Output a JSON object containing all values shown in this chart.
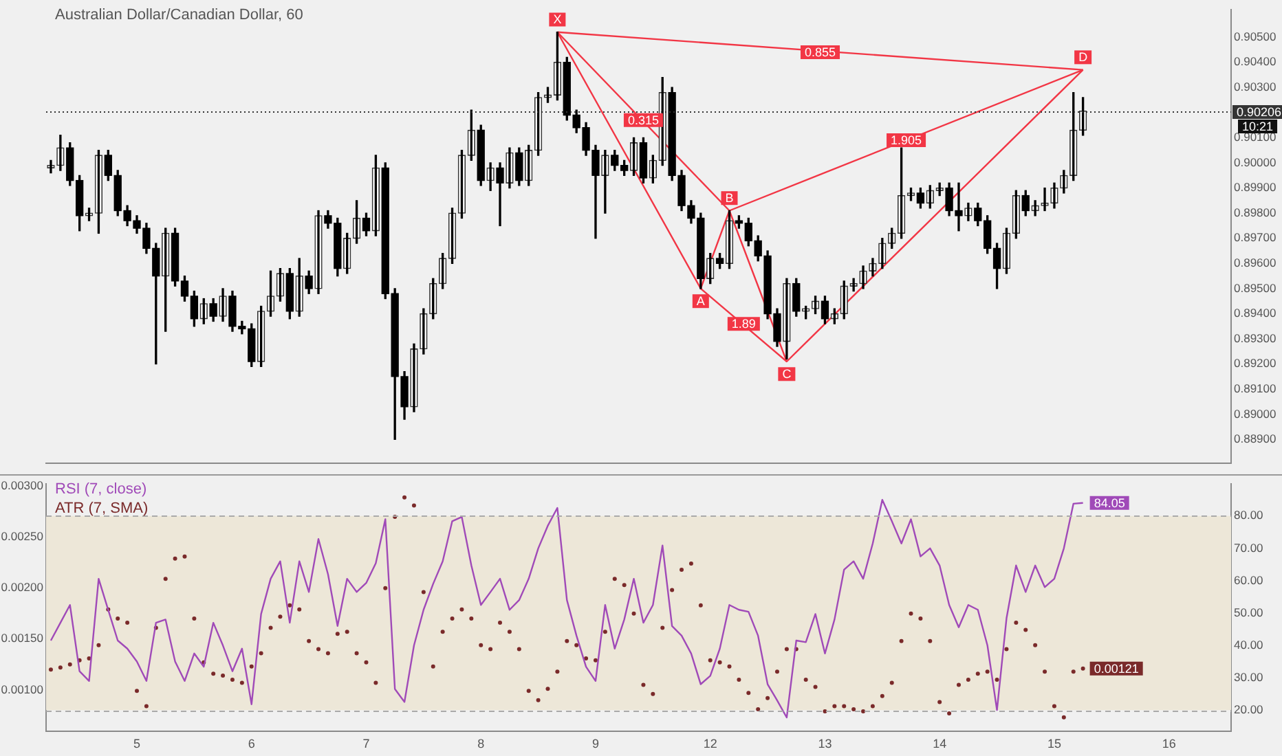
{
  "chart_data": [
    {
      "type": "candlestick",
      "title": "Australian Dollar/Canadian Dollar, 60",
      "categories": [
        null,
        null,
        null,
        null,
        null,
        null,
        null,
        null,
        null,
        "5",
        null,
        null,
        null,
        null,
        null,
        null,
        null,
        null,
        null,
        null,
        null,
        "6",
        null,
        null,
        null,
        null,
        null,
        null,
        null,
        null,
        null,
        null,
        null,
        "7",
        null,
        null,
        null,
        null,
        null,
        null,
        null,
        null,
        null,
        null,
        null,
        "8",
        null,
        null,
        null,
        null,
        null,
        null,
        null,
        null,
        null,
        null,
        null,
        "9",
        null,
        null,
        null,
        null,
        null,
        null,
        null,
        null,
        null,
        null,
        null,
        "12",
        null,
        null,
        null,
        null,
        null,
        null,
        null,
        null,
        null,
        null,
        null,
        "13",
        null,
        null,
        null,
        null,
        null,
        null,
        null,
        null,
        null,
        null,
        null,
        "14",
        null,
        null,
        null,
        null,
        null,
        null,
        null,
        null,
        null,
        null,
        null,
        "15",
        null,
        null,
        null,
        null,
        null,
        null,
        null,
        null,
        null,
        null,
        null,
        "16",
        null,
        null,
        null,
        null,
        null,
        null
      ],
      "ohlc": [
        [
          0.8998,
          0.9001,
          0.8996,
          0.8999
        ],
        [
          0.8999,
          0.9011,
          0.8997,
          0.9006
        ],
        [
          0.9006,
          0.9008,
          0.8991,
          0.8993
        ],
        [
          0.8993,
          0.8995,
          0.8973,
          0.8979
        ],
        [
          0.8979,
          0.8982,
          0.8977,
          0.898
        ],
        [
          0.898,
          0.9005,
          0.8972,
          0.9003
        ],
        [
          0.9003,
          0.9005,
          0.8993,
          0.8995
        ],
        [
          0.8995,
          0.8997,
          0.8979,
          0.8981
        ],
        [
          0.8981,
          0.8983,
          0.8975,
          0.8977
        ],
        [
          0.8977,
          0.8979,
          0.8972,
          0.8974
        ],
        [
          0.8974,
          0.8976,
          0.8964,
          0.8966
        ],
        [
          0.8966,
          0.8968,
          0.892,
          0.8955
        ],
        [
          0.8955,
          0.8974,
          0.8933,
          0.8972
        ],
        [
          0.8972,
          0.8974,
          0.8951,
          0.8953
        ],
        [
          0.8953,
          0.8955,
          0.8945,
          0.8947
        ],
        [
          0.8947,
          0.8949,
          0.8935,
          0.8938
        ],
        [
          0.8938,
          0.8946,
          0.8936,
          0.8944
        ],
        [
          0.8944,
          0.8946,
          0.8937,
          0.8939
        ],
        [
          0.8939,
          0.895,
          0.8937,
          0.8947
        ],
        [
          0.8947,
          0.8949,
          0.8933,
          0.8935
        ],
        [
          0.8935,
          0.8937,
          0.8932,
          0.8934
        ],
        [
          0.8934,
          0.8936,
          0.8919,
          0.8921
        ],
        [
          0.8921,
          0.8943,
          0.8919,
          0.8941
        ],
        [
          0.8941,
          0.8957,
          0.8939,
          0.8947
        ],
        [
          0.8947,
          0.8958,
          0.8945,
          0.8956
        ],
        [
          0.8956,
          0.8958,
          0.8938,
          0.8941
        ],
        [
          0.8941,
          0.8962,
          0.8939,
          0.8955
        ],
        [
          0.8955,
          0.8957,
          0.8948,
          0.895
        ],
        [
          0.895,
          0.8981,
          0.8948,
          0.8979
        ],
        [
          0.8979,
          0.8981,
          0.8974,
          0.8976
        ],
        [
          0.8976,
          0.8978,
          0.8955,
          0.8958
        ],
        [
          0.8958,
          0.8972,
          0.8956,
          0.897
        ],
        [
          0.897,
          0.8985,
          0.8968,
          0.8978
        ],
        [
          0.8978,
          0.898,
          0.8971,
          0.8973
        ],
        [
          0.8973,
          0.9003,
          0.8971,
          0.8998
        ],
        [
          0.8998,
          0.9,
          0.8946,
          0.8948
        ],
        [
          0.8948,
          0.895,
          0.889,
          0.8915
        ],
        [
          0.8915,
          0.8917,
          0.8898,
          0.8903
        ],
        [
          0.8903,
          0.8928,
          0.8901,
          0.8926
        ],
        [
          0.8926,
          0.8942,
          0.8924,
          0.894
        ],
        [
          0.894,
          0.8954,
          0.8938,
          0.8952
        ],
        [
          0.8952,
          0.8964,
          0.895,
          0.8962
        ],
        [
          0.8962,
          0.8982,
          0.896,
          0.898
        ],
        [
          0.898,
          0.9005,
          0.8978,
          0.9003
        ],
        [
          0.9003,
          0.9021,
          0.9001,
          0.9013
        ],
        [
          0.9013,
          0.9015,
          0.8991,
          0.8993
        ],
        [
          0.8993,
          0.9,
          0.8989,
          0.8998
        ],
        [
          0.8998,
          0.9,
          0.8975,
          0.8992
        ],
        [
          0.8992,
          0.9006,
          0.899,
          0.9004
        ],
        [
          0.9004,
          0.9006,
          0.8991,
          0.8993
        ],
        [
          0.8993,
          0.9007,
          0.8991,
          0.9005
        ],
        [
          0.9005,
          0.9028,
          0.9003,
          0.9026
        ],
        [
          0.9026,
          0.903,
          0.9024,
          0.9027
        ],
        [
          0.9027,
          0.9052,
          0.9025,
          0.904
        ],
        [
          0.904,
          0.9042,
          0.9017,
          0.9019
        ],
        [
          0.9019,
          0.9021,
          0.9012,
          0.9014
        ],
        [
          0.9014,
          0.9016,
          0.9003,
          0.9005
        ],
        [
          0.9005,
          0.9007,
          0.897,
          0.8995
        ],
        [
          0.8995,
          0.9005,
          0.898,
          0.9003
        ],
        [
          0.9003,
          0.9005,
          0.8997,
          0.8999
        ],
        [
          0.8999,
          0.9001,
          0.8995,
          0.8997
        ],
        [
          0.8997,
          0.901,
          0.8995,
          0.9008
        ],
        [
          0.9008,
          0.901,
          0.8992,
          0.8994
        ],
        [
          0.8994,
          0.9003,
          0.8992,
          0.9001
        ],
        [
          0.9001,
          0.9034,
          0.8999,
          0.9028
        ],
        [
          0.9028,
          0.903,
          0.8993,
          0.8995
        ],
        [
          0.8995,
          0.8997,
          0.8981,
          0.8983
        ],
        [
          0.8983,
          0.8985,
          0.8976,
          0.8978
        ],
        [
          0.8978,
          0.898,
          0.895,
          0.8954
        ],
        [
          0.8954,
          0.8964,
          0.8952,
          0.8962
        ],
        [
          0.8962,
          0.8964,
          0.8958,
          0.896
        ],
        [
          0.896,
          0.8981,
          0.8958,
          0.8977
        ],
        [
          0.8977,
          0.8979,
          0.8974,
          0.8976
        ],
        [
          0.8976,
          0.8978,
          0.8967,
          0.8969
        ],
        [
          0.8969,
          0.8971,
          0.8961,
          0.8963
        ],
        [
          0.8963,
          0.8965,
          0.8938,
          0.894
        ],
        [
          0.894,
          0.8942,
          0.8927,
          0.8929
        ],
        [
          0.8929,
          0.8954,
          0.8922,
          0.8952
        ],
        [
          0.8952,
          0.8954,
          0.8939,
          0.8941
        ],
        [
          0.8941,
          0.8943,
          0.8938,
          0.8942
        ],
        [
          0.8942,
          0.8947,
          0.894,
          0.8945
        ],
        [
          0.8945,
          0.8947,
          0.8936,
          0.8938
        ],
        [
          0.8938,
          0.8942,
          0.8936,
          0.894
        ],
        [
          0.894,
          0.8953,
          0.8938,
          0.8951
        ],
        [
          0.8951,
          0.8954,
          0.8949,
          0.8952
        ],
        [
          0.8952,
          0.8959,
          0.895,
          0.8957
        ],
        [
          0.8957,
          0.8962,
          0.8955,
          0.896
        ],
        [
          0.896,
          0.897,
          0.8958,
          0.8968
        ],
        [
          0.8968,
          0.8974,
          0.8966,
          0.8972
        ],
        [
          0.8972,
          0.9006,
          0.897,
          0.8987
        ],
        [
          0.8987,
          0.899,
          0.8985,
          0.8988
        ],
        [
          0.8988,
          0.899,
          0.8982,
          0.8984
        ],
        [
          0.8984,
          0.8991,
          0.8982,
          0.8989
        ],
        [
          0.8989,
          0.8992,
          0.8987,
          0.899
        ],
        [
          0.899,
          0.8992,
          0.8979,
          0.8981
        ],
        [
          0.8981,
          0.8992,
          0.8973,
          0.8979
        ],
        [
          0.8979,
          0.8984,
          0.8977,
          0.8982
        ],
        [
          0.8982,
          0.8984,
          0.8975,
          0.8977
        ],
        [
          0.8977,
          0.8979,
          0.8964,
          0.8966
        ],
        [
          0.8966,
          0.8968,
          0.895,
          0.8958
        ],
        [
          0.8958,
          0.8974,
          0.8956,
          0.8972
        ],
        [
          0.8972,
          0.8989,
          0.897,
          0.8987
        ],
        [
          0.8987,
          0.8989,
          0.8979,
          0.8981
        ],
        [
          0.8981,
          0.8985,
          0.8979,
          0.8983
        ],
        [
          0.8983,
          0.899,
          0.8981,
          0.8984
        ],
        [
          0.8984,
          0.8992,
          0.8982,
          0.899
        ],
        [
          0.899,
          0.8997,
          0.8988,
          0.8995
        ],
        [
          0.8995,
          0.9028,
          0.8993,
          0.9013
        ],
        [
          0.9013,
          0.9026,
          0.9011,
          0.90206
        ],
        null,
        null,
        null,
        null,
        null,
        null,
        null,
        null,
        null,
        null,
        null,
        null,
        null,
        null,
        null
      ],
      "series": [
        {
          "type": "line",
          "color": "#f23645",
          "values": [
            null,
            null,
            null,
            null,
            null,
            null,
            null,
            null,
            null,
            null,
            null,
            null,
            null,
            null,
            null,
            null,
            null,
            null,
            null,
            null,
            null,
            null,
            null,
            null,
            null,
            null,
            null,
            null,
            null,
            null,
            null,
            null,
            null,
            null,
            null,
            null,
            null,
            null,
            null,
            null,
            null,
            null,
            null,
            null,
            null,
            null,
            null,
            null,
            null,
            null,
            null,
            null,
            null,
            0.9052,
            null,
            null,
            null,
            null,
            null,
            null,
            null,
            null,
            null,
            null,
            null,
            null,
            null,
            null,
            0.895,
            null,
            null,
            0.8981,
            null,
            null,
            null,
            null,
            null,
            0.8921,
            null,
            null,
            null,
            null,
            null,
            null,
            null,
            null,
            null,
            null,
            null,
            null,
            null,
            null,
            null,
            null,
            null,
            null,
            null,
            null,
            null,
            null,
            null,
            null,
            null,
            null,
            null,
            null,
            null,
            null,
            0.9037,
            null,
            null,
            null,
            null,
            null,
            null,
            null,
            null,
            null,
            null,
            null,
            null,
            null,
            null,
            null
          ]
        },
        {
          "type": "line",
          "color": "#f23645",
          "values": [
            null,
            null,
            null,
            null,
            null,
            null,
            null,
            null,
            null,
            null,
            null,
            null,
            null,
            null,
            null,
            null,
            null,
            null,
            null,
            null,
            null,
            null,
            null,
            null,
            null,
            null,
            null,
            null,
            null,
            null,
            null,
            null,
            null,
            null,
            null,
            null,
            null,
            null,
            null,
            null,
            null,
            null,
            null,
            null,
            null,
            null,
            null,
            null,
            null,
            null,
            null,
            null,
            null,
            0.9052,
            null,
            null,
            null,
            null,
            null,
            null,
            null,
            null,
            null,
            null,
            null,
            null,
            null,
            null,
            null,
            null,
            null,
            0.8981,
            null,
            null,
            null,
            null,
            null,
            null,
            null,
            null,
            null,
            null,
            null,
            null,
            null,
            null,
            null,
            null,
            null,
            null,
            null,
            null,
            null,
            null,
            null,
            null,
            null,
            null,
            null,
            null,
            null,
            null,
            null,
            null,
            null,
            null,
            null,
            null,
            null,
            null,
            null,
            null,
            null,
            null,
            null,
            null,
            null,
            null,
            null,
            null,
            null,
            null,
            null,
            null
          ]
        },
        {
          "type": "line",
          "color": "#f23645",
          "values": [
            null,
            null,
            null,
            null,
            null,
            null,
            null,
            null,
            null,
            null,
            null,
            null,
            null,
            null,
            null,
            null,
            null,
            null,
            null,
            null,
            null,
            null,
            null,
            null,
            null,
            null,
            null,
            null,
            null,
            null,
            null,
            null,
            null,
            null,
            null,
            null,
            null,
            null,
            null,
            null,
            null,
            null,
            null,
            null,
            null,
            null,
            null,
            null,
            null,
            null,
            null,
            null,
            null,
            null,
            null,
            null,
            null,
            null,
            null,
            null,
            null,
            null,
            null,
            null,
            null,
            null,
            null,
            null,
            null,
            null,
            null,
            0.8981,
            null,
            null,
            null,
            null,
            null,
            null,
            null,
            null,
            null,
            null,
            null,
            null,
            null,
            null,
            null,
            null,
            null,
            null,
            null,
            null,
            null,
            null,
            null,
            null,
            null,
            null,
            null,
            null,
            null,
            null,
            null,
            null,
            null,
            null,
            null,
            null,
            0.9037,
            null,
            null,
            null,
            null,
            null,
            null,
            null,
            null,
            null,
            null,
            null,
            null,
            null,
            null,
            null
          ]
        },
        {
          "type": "line",
          "color": "#f23645",
          "values": [
            null,
            null,
            null,
            null,
            null,
            null,
            null,
            null,
            null,
            null,
            null,
            null,
            null,
            null,
            null,
            null,
            null,
            null,
            null,
            null,
            null,
            null,
            null,
            null,
            null,
            null,
            null,
            null,
            null,
            null,
            null,
            null,
            null,
            null,
            null,
            null,
            null,
            null,
            null,
            null,
            null,
            null,
            null,
            null,
            null,
            null,
            null,
            null,
            null,
            null,
            null,
            null,
            null,
            0.9052,
            null,
            null,
            null,
            null,
            null,
            null,
            null,
            null,
            null,
            null,
            null,
            null,
            null,
            null,
            null,
            null,
            null,
            null,
            null,
            null,
            null,
            null,
            null,
            null,
            null,
            null,
            null,
            null,
            null,
            null,
            null,
            null,
            null,
            null,
            null,
            null,
            null,
            null,
            null,
            null,
            null,
            null,
            null,
            null,
            null,
            null,
            null,
            null,
            null,
            null,
            null,
            null,
            null,
            null,
            0.9037,
            null,
            null,
            null,
            null,
            null,
            null,
            null,
            null,
            null,
            null,
            null,
            null,
            null,
            null,
            null
          ]
        },
        {
          "type": "line",
          "color": "#f23645",
          "values": [
            null,
            null,
            null,
            null,
            null,
            null,
            null,
            null,
            null,
            null,
            null,
            null,
            null,
            null,
            null,
            null,
            null,
            null,
            null,
            null,
            null,
            null,
            null,
            null,
            null,
            null,
            null,
            null,
            null,
            null,
            null,
            null,
            null,
            null,
            null,
            null,
            null,
            null,
            null,
            null,
            null,
            null,
            null,
            null,
            null,
            null,
            null,
            null,
            null,
            null,
            null,
            null,
            null,
            null,
            null,
            null,
            null,
            null,
            null,
            null,
            null,
            null,
            null,
            null,
            null,
            null,
            null,
            null,
            0.895,
            null,
            null,
            null,
            null,
            null,
            null,
            null,
            null,
            0.8921,
            null,
            null,
            null,
            null,
            null,
            null,
            null,
            null,
            null,
            null,
            null,
            null,
            null,
            null,
            null,
            null,
            null,
            null,
            null,
            null,
            null,
            null,
            null,
            null,
            null,
            null,
            null,
            null,
            null,
            null,
            null,
            null,
            null,
            null,
            null,
            null,
            null,
            null,
            null,
            null,
            null,
            null,
            null,
            null,
            null,
            null
          ]
        }
      ],
      "ylim": [
        0.88806,
        0.90609
      ],
      "yticks": [
        {
          "value": 0.889,
          "label": "0.88900"
        },
        {
          "value": 0.89,
          "label": "0.89000"
        },
        {
          "value": 0.891,
          "label": "0.89100"
        },
        {
          "value": 0.892,
          "label": "0.89200"
        },
        {
          "value": 0.893,
          "label": "0.89300"
        },
        {
          "value": 0.894,
          "label": "0.89400"
        },
        {
          "value": 0.895,
          "label": "0.89500"
        },
        {
          "value": 0.896,
          "label": "0.89600"
        },
        {
          "value": 0.897,
          "label": "0.89700"
        },
        {
          "value": 0.898,
          "label": "0.89800"
        },
        {
          "value": 0.899,
          "label": "0.89900"
        },
        {
          "value": 0.9,
          "label": "0.90000"
        },
        {
          "value": 0.901,
          "label": "0.90100"
        },
        {
          "value": 0.903,
          "label": "0.90300"
        },
        {
          "value": 0.904,
          "label": "0.90400"
        },
        {
          "value": 0.905,
          "label": "0.90500"
        }
      ],
      "tick_labels": "y",
      "ref_lines": [
        {
          "axis": "y",
          "value": 0.90206,
          "label": "0.90206",
          "color": "#333333",
          "line_style": "dotted"
        }
      ],
      "annotations": [
        {
          "text": "X",
          "y": 0.9057
        },
        {
          "text": "A",
          "y": 0.8945
        },
        {
          "text": "B",
          "y": 0.8986
        },
        {
          "text": "C",
          "y": 0.8916
        },
        {
          "text": "D",
          "y": 0.9042
        },
        {
          "text": "0.315",
          "y": 0.9017
        },
        {
          "text": "1.905",
          "y": 0.9009
        },
        {
          "text": "0.855",
          "y": 0.9044
        },
        {
          "text": "1.89",
          "y": 0.8936
        },
        "10:21"
      ]
    },
    {
      "type": "line",
      "legend": "top left",
      "categories": [
        null,
        null,
        null,
        null,
        null,
        null,
        null,
        null,
        null,
        "5",
        null,
        null,
        null,
        null,
        null,
        null,
        null,
        null,
        null,
        null,
        null,
        "6",
        null,
        null,
        null,
        null,
        null,
        null,
        null,
        null,
        null,
        null,
        null,
        "7",
        null,
        null,
        null,
        null,
        null,
        null,
        null,
        null,
        null,
        null,
        null,
        "8",
        null,
        null,
        null,
        null,
        null,
        null,
        null,
        null,
        null,
        null,
        null,
        "9",
        null,
        null,
        null,
        null,
        null,
        null,
        null,
        null,
        null,
        null,
        null,
        "12",
        null,
        null,
        null,
        null,
        null,
        null,
        null,
        null,
        null,
        null,
        null,
        "13",
        null,
        null,
        null,
        null,
        null,
        null,
        null,
        null,
        null,
        null,
        null,
        "14",
        null,
        null,
        null,
        null,
        null,
        null,
        null,
        null,
        null,
        null,
        null,
        "15",
        null,
        null,
        null,
        null,
        null,
        null,
        null,
        null,
        null,
        null,
        null,
        "16",
        null,
        null,
        null,
        null,
        null,
        null
      ],
      "series": [
        {
          "name": "RSI (7, close)",
          "color": "#a04ab8",
          "values": [
            41.5,
            47,
            52.5,
            32,
            29,
            60.6,
            51,
            41.5,
            39,
            35,
            29,
            47,
            48,
            35,
            29,
            37.5,
            33.4,
            47,
            40,
            32,
            39,
            21.8,
            49.7,
            60.6,
            66,
            47,
            66,
            56.5,
            72.9,
            62,
            46,
            60.6,
            56.5,
            59.3,
            65.4,
            79,
            26.5,
            22.5,
            40,
            51,
            59,
            66,
            78.4,
            79.7,
            64.7,
            52.5,
            56.5,
            60.6,
            51,
            54,
            60.6,
            70,
            77,
            82.5,
            54,
            43,
            33.4,
            29,
            52.5,
            39,
            48,
            60.6,
            47,
            52.5,
            70.9,
            46,
            43,
            37.5,
            28,
            30.6,
            39,
            52.5,
            51,
            50.4,
            43,
            28,
            23,
            17.7,
            41.5,
            41,
            49.7,
            37.5,
            48,
            63.4,
            66,
            60.6,
            71.5,
            85,
            78.4,
            71.5,
            79,
            67.5,
            70,
            64.7,
            52.5,
            45.6,
            52.5,
            51,
            40,
            20,
            48.4,
            64.7,
            56.5,
            64.7,
            58,
            60.6,
            70,
            83.8,
            84.05,
            null,
            null,
            null,
            null,
            null,
            null,
            null,
            null,
            null,
            null,
            null,
            null,
            null,
            null,
            null
          ],
          "value_labels": [
            null,
            null,
            null,
            null,
            null,
            null,
            null,
            null,
            null,
            null,
            null,
            null,
            null,
            null,
            null,
            null,
            null,
            null,
            null,
            null,
            null,
            null,
            null,
            null,
            null,
            null,
            null,
            null,
            null,
            null,
            null,
            null,
            null,
            null,
            null,
            null,
            null,
            null,
            null,
            null,
            null,
            null,
            null,
            null,
            null,
            null,
            null,
            null,
            null,
            null,
            null,
            null,
            null,
            null,
            null,
            null,
            null,
            null,
            null,
            null,
            null,
            null,
            null,
            null,
            null,
            null,
            null,
            null,
            null,
            null,
            null,
            null,
            null,
            null,
            null,
            null,
            null,
            null,
            null,
            null,
            null,
            null,
            null,
            null,
            null,
            null,
            null,
            null,
            null,
            null,
            null,
            null,
            null,
            null,
            null,
            null,
            null,
            null,
            null,
            null,
            null,
            null,
            null,
            null,
            null,
            null,
            null,
            null,
            "84.05",
            null,
            null,
            null,
            null,
            null,
            null,
            null,
            null,
            null,
            null,
            null,
            null,
            null,
            null,
            null
          ]
        },
        {
          "name": "ATR (7, SMA)",
          "type": "scatter",
          "axis": "y2",
          "color": "#7a2a2a",
          "values": [
            0.0012,
            0.00122,
            0.00125,
            0.00129,
            0.00131,
            0.00144,
            0.00179,
            0.0017,
            0.00166,
            0.00099,
            0.00084,
            0.00161,
            0.00209,
            0.00229,
            0.00231,
            0.0017,
            0.00127,
            0.00116,
            0.00114,
            0.0011,
            0.00107,
            0.00123,
            0.00136,
            0.00161,
            0.00172,
            0.00183,
            0.00179,
            0.00148,
            0.0014,
            0.00136,
            0.00155,
            0.00157,
            0.00136,
            0.00127,
            0.00107,
            0.002,
            0.0027,
            0.00289,
            0.00281,
            0.00196,
            0.00123,
            0.00157,
            0.0017,
            0.00179,
            0.0017,
            0.00144,
            0.0014,
            0.00166,
            0.00157,
            0.0014,
            0.00099,
            0.0009,
            0.00101,
            0.00118,
            0.00148,
            0.00144,
            0.00131,
            0.00129,
            0.00157,
            0.00209,
            0.00203,
            0.00175,
            0.00105,
            0.00096,
            0.00161,
            0.00198,
            0.00218,
            0.00224,
            0.00183,
            0.00129,
            0.00127,
            0.00123,
            0.0011,
            0.00097,
            0.00081,
            0.00092,
            0.00118,
            0.0014,
            0.0014,
            0.0011,
            0.00103,
            0.00079,
            0.00084,
            0.00084,
            0.00081,
            0.00079,
            0.00084,
            0.00094,
            0.00107,
            0.00148,
            0.00175,
            0.0017,
            0.00148,
            0.00088,
            0.00077,
            0.00105,
            0.0011,
            0.00116,
            0.00118,
            0.0011,
            0.0014,
            0.00166,
            0.00159,
            0.00144,
            0.00118,
            0.00084,
            0.00073,
            0.00118,
            0.00121,
            null,
            null,
            null,
            null,
            null,
            null,
            null,
            null,
            null,
            null,
            null,
            null,
            null,
            null,
            null
          ],
          "value_labels": [
            null,
            null,
            null,
            null,
            null,
            null,
            null,
            null,
            null,
            null,
            null,
            null,
            null,
            null,
            null,
            null,
            null,
            null,
            null,
            null,
            null,
            null,
            null,
            null,
            null,
            null,
            null,
            null,
            null,
            null,
            null,
            null,
            null,
            null,
            null,
            null,
            null,
            null,
            null,
            null,
            null,
            null,
            null,
            null,
            null,
            null,
            null,
            null,
            null,
            null,
            null,
            null,
            null,
            null,
            null,
            null,
            null,
            null,
            null,
            null,
            null,
            null,
            null,
            null,
            null,
            null,
            null,
            null,
            null,
            null,
            null,
            null,
            null,
            null,
            null,
            null,
            null,
            null,
            null,
            null,
            null,
            null,
            null,
            null,
            null,
            null,
            null,
            null,
            null,
            null,
            null,
            null,
            null,
            null,
            null,
            null,
            null,
            null,
            null,
            null,
            null,
            null,
            null,
            null,
            null,
            null,
            null,
            null,
            "0.00121",
            null,
            null,
            null,
            null,
            null,
            null,
            null,
            null,
            null,
            null,
            null,
            null,
            null,
            null,
            null
          ]
        }
      ],
      "ylim": [
        13.45,
        89.9
      ],
      "yticks": [
        {
          "value": 20,
          "label": "20.00"
        },
        {
          "value": 30,
          "label": "30.00"
        },
        {
          "value": 40,
          "label": "40.00"
        },
        {
          "value": 50,
          "label": "50.00"
        },
        {
          "value": 60,
          "label": "60.00"
        },
        {
          "value": 70,
          "label": "70.00"
        },
        {
          "value": 80,
          "label": "80.00"
        }
      ],
      "y2lim": [
        0.000594,
        0.003022
      ],
      "y2ticks": [
        {
          "value": 0.001,
          "label": "0.00100"
        },
        {
          "value": 0.0015,
          "label": "0.00150"
        },
        {
          "value": 0.002,
          "label": "0.00200"
        },
        {
          "value": 0.0025,
          "label": "0.00250"
        },
        {
          "value": 0.003,
          "label": "0.00300"
        }
      ],
      "bands": [
        {
          "axis": "y",
          "from": 20,
          "to": 80,
          "color": "#ede7d8"
        }
      ],
      "ref_lines": [
        {
          "axis": "y",
          "value": 80,
          "color": "#aaaaaa",
          "line_style": "dashed"
        },
        {
          "axis": "y",
          "value": 20,
          "color": "#aaaaaa",
          "line_style": "dashed"
        }
      ]
    }
  ]
}
